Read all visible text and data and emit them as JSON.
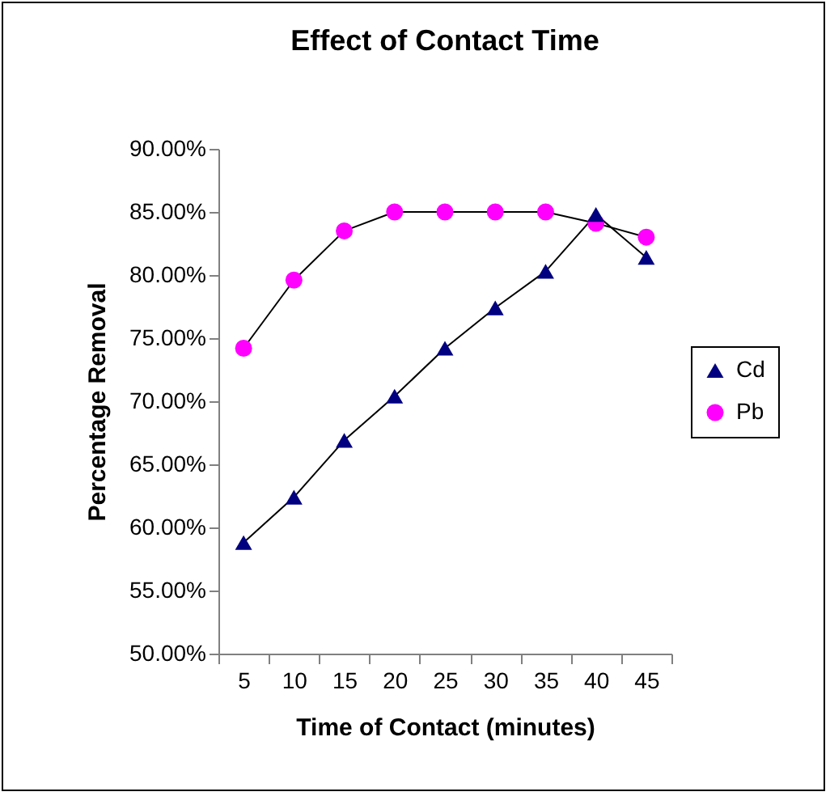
{
  "chart_data": {
    "type": "line",
    "title": "Effect of Contact Time",
    "xlabel": "Time of Contact (minutes)",
    "ylabel": "Percentage Removal",
    "categories": [
      "5",
      "10",
      "15",
      "20",
      "25",
      "30",
      "35",
      "40",
      "45"
    ],
    "series": [
      {
        "name": "Cd",
        "color": "#000080",
        "marker": "triangle",
        "values": [
          58.8,
          62.4,
          66.9,
          70.4,
          74.2,
          77.4,
          80.3,
          84.8,
          81.4
        ]
      },
      {
        "name": "Pb",
        "color": "#ff00ff",
        "marker": "circle",
        "values": [
          74.2,
          79.6,
          83.5,
          85,
          85,
          85,
          85,
          84.1,
          83.0
        ]
      }
    ],
    "ylim": [
      50,
      90
    ],
    "yticks": [
      {
        "value": 50,
        "label": "50.00%"
      },
      {
        "value": 55,
        "label": "55.00%"
      },
      {
        "value": 60,
        "label": "60.00%"
      },
      {
        "value": 65,
        "label": "65.00%"
      },
      {
        "value": 70,
        "label": "70.00%"
      },
      {
        "value": 75,
        "label": "75.00%"
      },
      {
        "value": 80,
        "label": "80.00%"
      },
      {
        "value": 85,
        "label": "85.00%"
      },
      {
        "value": 90,
        "label": "90.00%"
      }
    ],
    "grid": false,
    "legend": "right",
    "line_style": "solid"
  }
}
